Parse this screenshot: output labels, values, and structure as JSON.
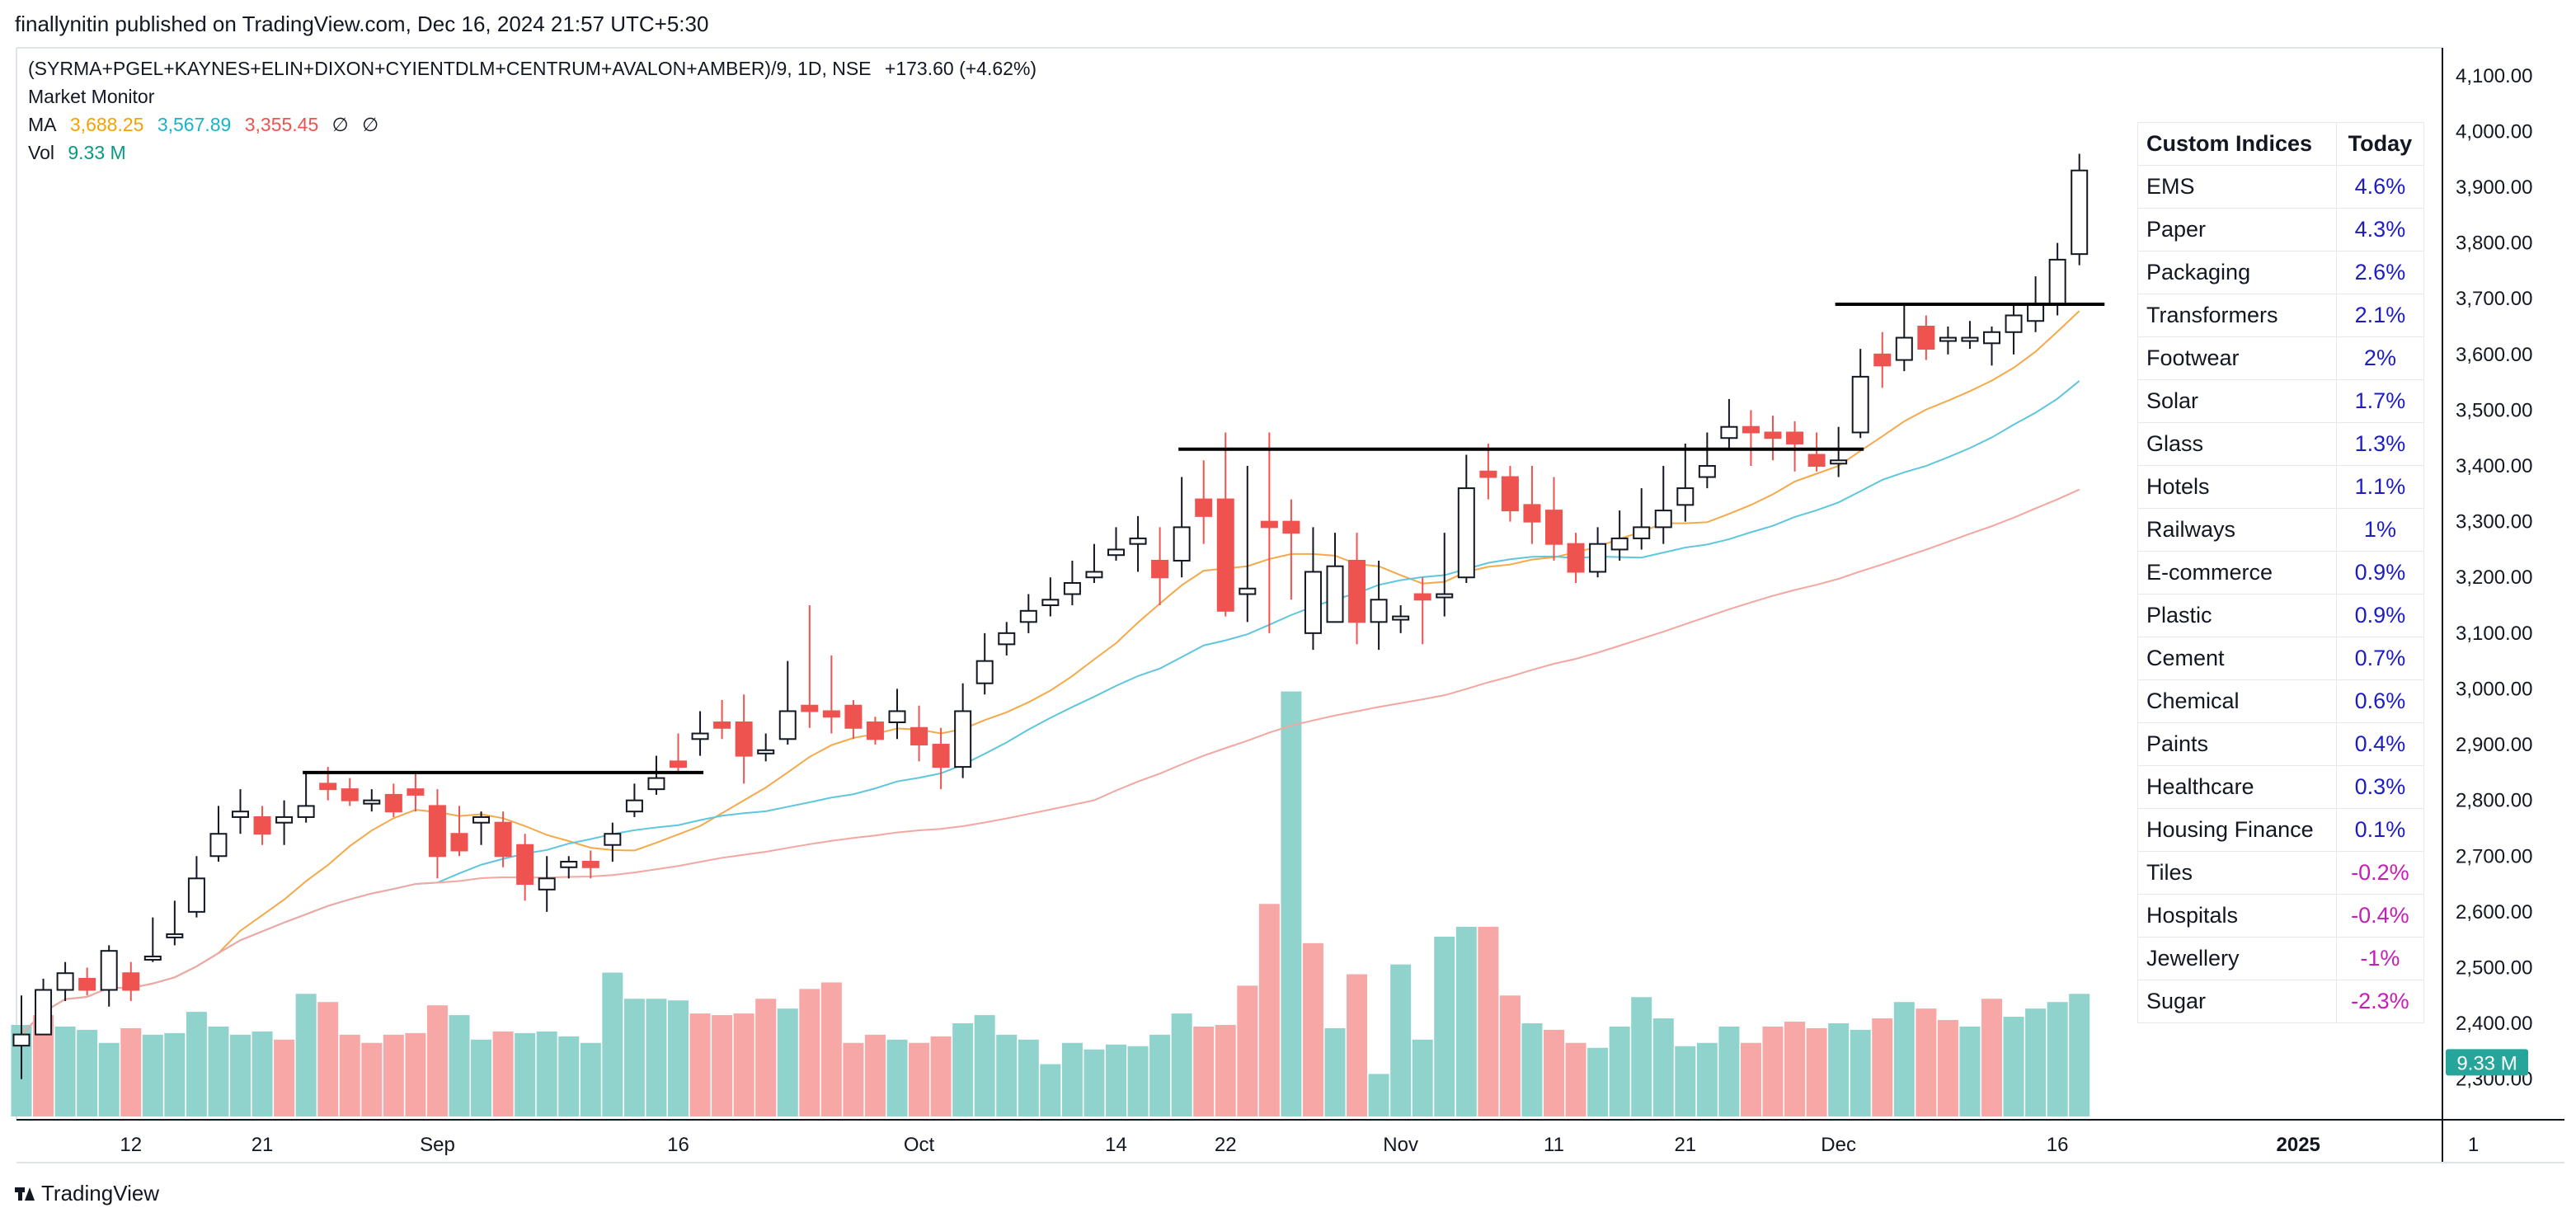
{
  "publisher_line": "finallynitin published on TradingView.com, Dec 16, 2024 21:57 UTC+5:30",
  "legend": {
    "symbol": "(SYRMA+PGEL+KAYNES+ELIN+DIXON+CYIENTDLM+CENTRUM+AVALON+AMBER)/9, 1D, NSE",
    "change": "+173.60 (+4.62%)",
    "indicator_name": "Market Monitor",
    "ma_label": "MA",
    "ma_values": [
      "3,688.25",
      "3,567.89",
      "3,355.45"
    ],
    "ma_extra": [
      "∅",
      "∅"
    ],
    "vol_label": "Vol",
    "vol_value": "9.33 M"
  },
  "brand": "TradingView",
  "colors": {
    "up_border": "#131722",
    "down_fill": "#ef5350",
    "vol_up": "#8fd3cc",
    "vol_down": "#f7a7a6",
    "ma_fast": "#f5a94a",
    "ma_mid": "#5ec6dd",
    "ma_slow": "#f4a6a0",
    "ma_value_colors": [
      "#f5a200",
      "#17b4c9",
      "#f0524f"
    ],
    "vol_value_color": "#089981",
    "positive_text": "#1c1cc8",
    "negative_text": "#c81cb8"
  },
  "table": {
    "header": [
      "Custom Indices",
      "Today"
    ],
    "rows": [
      {
        "name": "EMS",
        "value": "4.6%"
      },
      {
        "name": "Paper",
        "value": "4.3%"
      },
      {
        "name": "Packaging",
        "value": "2.6%"
      },
      {
        "name": "Transformers",
        "value": "2.1%"
      },
      {
        "name": "Footwear",
        "value": "2%"
      },
      {
        "name": "Solar",
        "value": "1.7%"
      },
      {
        "name": "Glass",
        "value": "1.3%"
      },
      {
        "name": "Hotels",
        "value": "1.1%"
      },
      {
        "name": "Railways",
        "value": "1%"
      },
      {
        "name": "E-commerce",
        "value": "0.9%"
      },
      {
        "name": "Plastic",
        "value": "0.9%"
      },
      {
        "name": "Cement",
        "value": "0.7%"
      },
      {
        "name": "Chemical",
        "value": "0.6%"
      },
      {
        "name": "Paints",
        "value": "0.4%"
      },
      {
        "name": "Healthcare",
        "value": "0.3%"
      },
      {
        "name": "Housing Finance",
        "value": "0.1%"
      },
      {
        "name": "Tiles",
        "value": "-0.2%"
      },
      {
        "name": "Hospitals",
        "value": "-0.4%"
      },
      {
        "name": "Jewellery",
        "value": "-1%"
      },
      {
        "name": "Sugar",
        "value": "-2.3%"
      }
    ]
  },
  "chart_data": {
    "type": "candlestick",
    "y_ticks": [
      "2,300.00",
      "2,400.00",
      "2,500.00",
      "2,600.00",
      "2,700.00",
      "2,800.00",
      "2,900.00",
      "3,000.00",
      "3,100.00",
      "3,200.00",
      "3,300.00",
      "3,400.00",
      "3,500.00",
      "3,600.00",
      "3,700.00",
      "3,800.00",
      "3,900.00",
      "4,000.00",
      "4,100.00"
    ],
    "ylim": [
      2230,
      4150
    ],
    "price_badge": "9.33 M",
    "x_tick_labels": [
      {
        "label": "12",
        "bar": 5
      },
      {
        "label": "21",
        "bar": 11
      },
      {
        "label": "Sep",
        "bar": 19
      },
      {
        "label": "16",
        "bar": 30
      },
      {
        "label": "Oct",
        "bar": 41
      },
      {
        "label": "14",
        "bar": 50
      },
      {
        "label": "22",
        "bar": 55
      },
      {
        "label": "Nov",
        "bar": 63
      },
      {
        "label": "11",
        "bar": 70
      },
      {
        "label": "21",
        "bar": 76
      },
      {
        "label": "Dec",
        "bar": 83
      },
      {
        "label": "16",
        "bar": 93
      },
      {
        "label": "2025",
        "bar": 104
      },
      {
        "label": "1",
        "bar": 112
      }
    ],
    "candles": [
      [
        2360,
        2420,
        2380,
        2450,
        2300
      ],
      [
        2380,
        2430,
        2460,
        2480,
        2390
      ],
      [
        2460,
        2480,
        2490,
        2510,
        2440
      ],
      [
        2480,
        2490,
        2460,
        2500,
        2450
      ],
      [
        2460,
        2510,
        2530,
        2540,
        2430
      ],
      [
        2490,
        2500,
        2460,
        2510,
        2440
      ],
      [
        2520,
        2560,
        2520,
        2590,
        2510
      ],
      [
        2560,
        2570,
        2560,
        2620,
        2540
      ],
      [
        2600,
        2680,
        2660,
        2700,
        2590
      ],
      [
        2700,
        2760,
        2740,
        2790,
        2690
      ],
      [
        2770,
        2800,
        2780,
        2820,
        2740
      ],
      [
        2770,
        2760,
        2740,
        2790,
        2720
      ],
      [
        2760,
        2770,
        2770,
        2800,
        2720
      ],
      [
        2770,
        2820,
        2790,
        2850,
        2760
      ],
      [
        2830,
        2810,
        2820,
        2860,
        2800
      ],
      [
        2820,
        2810,
        2800,
        2840,
        2790
      ],
      [
        2800,
        2810,
        2800,
        2820,
        2780
      ],
      [
        2810,
        2790,
        2780,
        2830,
        2770
      ],
      [
        2820,
        2790,
        2810,
        2850,
        2780
      ],
      [
        2790,
        2720,
        2700,
        2820,
        2660
      ],
      [
        2740,
        2780,
        2710,
        2790,
        2700
      ],
      [
        2760,
        2760,
        2770,
        2780,
        2720
      ],
      [
        2760,
        2720,
        2700,
        2780,
        2680
      ],
      [
        2720,
        2640,
        2650,
        2740,
        2620
      ],
      [
        2640,
        2680,
        2660,
        2700,
        2600
      ],
      [
        2680,
        2690,
        2690,
        2700,
        2660
      ],
      [
        2690,
        2700,
        2680,
        2710,
        2660
      ],
      [
        2720,
        2750,
        2740,
        2760,
        2690
      ],
      [
        2780,
        2820,
        2800,
        2830,
        2770
      ],
      [
        2820,
        2850,
        2840,
        2880,
        2810
      ],
      [
        2870,
        2890,
        2860,
        2920,
        2850
      ],
      [
        2910,
        2940,
        2920,
        2960,
        2880
      ],
      [
        2940,
        2920,
        2930,
        2980,
        2910
      ],
      [
        2940,
        2870,
        2880,
        2990,
        2830
      ],
      [
        2890,
        2890,
        2890,
        2920,
        2870
      ],
      [
        2910,
        2970,
        2960,
        3050,
        2900
      ],
      [
        2970,
        2960,
        2960,
        3150,
        2930
      ],
      [
        2960,
        2930,
        2950,
        3060,
        2920
      ],
      [
        2970,
        2930,
        2930,
        2980,
        2910
      ],
      [
        2940,
        2920,
        2910,
        2950,
        2900
      ],
      [
        2940,
        2960,
        2960,
        3000,
        2910
      ],
      [
        2930,
        2900,
        2900,
        2970,
        2870
      ],
      [
        2900,
        2860,
        2860,
        2930,
        2820
      ],
      [
        2860,
        2980,
        2960,
        3010,
        2840
      ],
      [
        3010,
        3060,
        3050,
        3100,
        2990
      ],
      [
        3080,
        3110,
        3100,
        3120,
        3060
      ],
      [
        3120,
        3140,
        3140,
        3170,
        3100
      ],
      [
        3150,
        3170,
        3160,
        3200,
        3130
      ],
      [
        3170,
        3200,
        3190,
        3230,
        3150
      ],
      [
        3200,
        3220,
        3210,
        3260,
        3190
      ],
      [
        3240,
        3250,
        3250,
        3290,
        3230
      ],
      [
        3260,
        3290,
        3270,
        3310,
        3210
      ],
      [
        3230,
        3260,
        3200,
        3290,
        3150
      ],
      [
        3230,
        3300,
        3290,
        3380,
        3200
      ],
      [
        3340,
        3330,
        3310,
        3410,
        3260
      ],
      [
        3340,
        3300,
        3140,
        3460,
        3130
      ],
      [
        3170,
        3210,
        3180,
        3400,
        3120
      ],
      [
        3300,
        3320,
        3290,
        3460,
        3100
      ],
      [
        3300,
        3330,
        3280,
        3340,
        3160
      ],
      [
        3100,
        3180,
        3210,
        3290,
        3070
      ],
      [
        3120,
        3230,
        3220,
        3280,
        3140
      ],
      [
        3230,
        3250,
        3120,
        3280,
        3080
      ],
      [
        3120,
        3140,
        3160,
        3230,
        3070
      ],
      [
        3130,
        3140,
        3130,
        3150,
        3100
      ],
      [
        3170,
        3180,
        3160,
        3200,
        3080
      ],
      [
        3170,
        3210,
        3170,
        3280,
        3130
      ],
      [
        3200,
        3380,
        3360,
        3420,
        3190
      ],
      [
        3390,
        3420,
        3380,
        3440,
        3340
      ],
      [
        3380,
        3340,
        3320,
        3400,
        3300
      ],
      [
        3330,
        3360,
        3300,
        3400,
        3260
      ],
      [
        3320,
        3350,
        3260,
        3380,
        3230
      ],
      [
        3260,
        3270,
        3210,
        3280,
        3190
      ],
      [
        3210,
        3240,
        3260,
        3290,
        3200
      ],
      [
        3250,
        3290,
        3270,
        3320,
        3230
      ],
      [
        3270,
        3280,
        3290,
        3360,
        3250
      ],
      [
        3290,
        3350,
        3320,
        3400,
        3260
      ],
      [
        3330,
        3380,
        3360,
        3440,
        3300
      ],
      [
        3380,
        3420,
        3400,
        3460,
        3360
      ],
      [
        3450,
        3480,
        3470,
        3520,
        3430
      ],
      [
        3470,
        3500,
        3460,
        3500,
        3400
      ],
      [
        3460,
        3480,
        3450,
        3490,
        3410
      ],
      [
        3460,
        3460,
        3440,
        3480,
        3390
      ],
      [
        3420,
        3430,
        3400,
        3460,
        3390
      ],
      [
        3410,
        3430,
        3410,
        3470,
        3380
      ],
      [
        3460,
        3520,
        3560,
        3610,
        3450
      ],
      [
        3600,
        3620,
        3580,
        3640,
        3540
      ],
      [
        3590,
        3610,
        3630,
        3690,
        3570
      ],
      [
        3650,
        3640,
        3610,
        3670,
        3590
      ],
      [
        3630,
        3650,
        3630,
        3650,
        3600
      ],
      [
        3630,
        3640,
        3630,
        3660,
        3610
      ],
      [
        3620,
        3630,
        3640,
        3650,
        3580
      ],
      [
        3640,
        3650,
        3670,
        3690,
        3600
      ],
      [
        3660,
        3690,
        3690,
        3740,
        3640
      ],
      [
        3690,
        3780,
        3770,
        3800,
        3670
      ],
      [
        3780,
        3930,
        3930,
        3960,
        3760
      ]
    ],
    "volume_bars": [
      0.56,
      0.62,
      0.55,
      0.53,
      0.45,
      0.54,
      0.5,
      0.51,
      0.64,
      0.55,
      0.5,
      0.52,
      0.47,
      0.75,
      0.7,
      0.5,
      0.45,
      0.5,
      0.51,
      0.68,
      0.62,
      0.47,
      0.52,
      0.51,
      0.52,
      0.49,
      0.45,
      0.88,
      0.72,
      0.72,
      0.71,
      0.63,
      0.62,
      0.63,
      0.72,
      0.66,
      0.78,
      0.82,
      0.45,
      0.5,
      0.47,
      0.45,
      0.49,
      0.57,
      0.62,
      0.5,
      0.47,
      0.32,
      0.45,
      0.41,
      0.44,
      0.43,
      0.5,
      0.63,
      0.55,
      0.56,
      0.8,
      1.3,
      2.6,
      1.06,
      0.54,
      0.87,
      0.26,
      0.93,
      0.47,
      1.1,
      1.16,
      1.16,
      0.74,
      0.57,
      0.53,
      0.45,
      0.42,
      0.55,
      0.73,
      0.6,
      0.43,
      0.45,
      0.55,
      0.45,
      0.55,
      0.58,
      0.54,
      0.57,
      0.53,
      0.6,
      0.7,
      0.66,
      0.59,
      0.55,
      0.72,
      0.61,
      0.66,
      0.7,
      0.75
    ],
    "up_flags_volume": [
      1,
      0,
      1,
      1,
      1,
      0,
      1,
      1,
      1,
      1,
      1,
      1,
      0,
      1,
      0,
      0,
      0,
      0,
      0,
      0,
      1,
      1,
      0,
      1,
      1,
      1,
      1,
      1,
      1,
      1,
      1,
      0,
      0,
      0,
      0,
      1,
      0,
      0,
      0,
      0,
      1,
      0,
      0,
      1,
      1,
      1,
      1,
      1,
      1,
      1,
      1,
      1,
      1,
      1,
      0,
      0,
      0,
      0,
      1,
      0,
      1,
      0,
      1,
      1,
      1,
      1,
      1,
      0,
      0,
      1,
      0,
      0,
      1,
      1,
      1,
      1,
      1,
      1,
      1,
      0,
      0,
      0,
      0,
      1,
      1,
      0,
      1,
      0,
      0,
      1,
      0,
      1,
      1,
      1,
      1
    ],
    "resistance_levels": [
      {
        "price": 2850,
        "from_bar": 13,
        "to_bar": 31
      },
      {
        "price": 3430,
        "from_bar": 53,
        "to_bar": 84
      },
      {
        "price": 3690,
        "from_bar": 83,
        "to_bar": 95
      }
    ]
  }
}
